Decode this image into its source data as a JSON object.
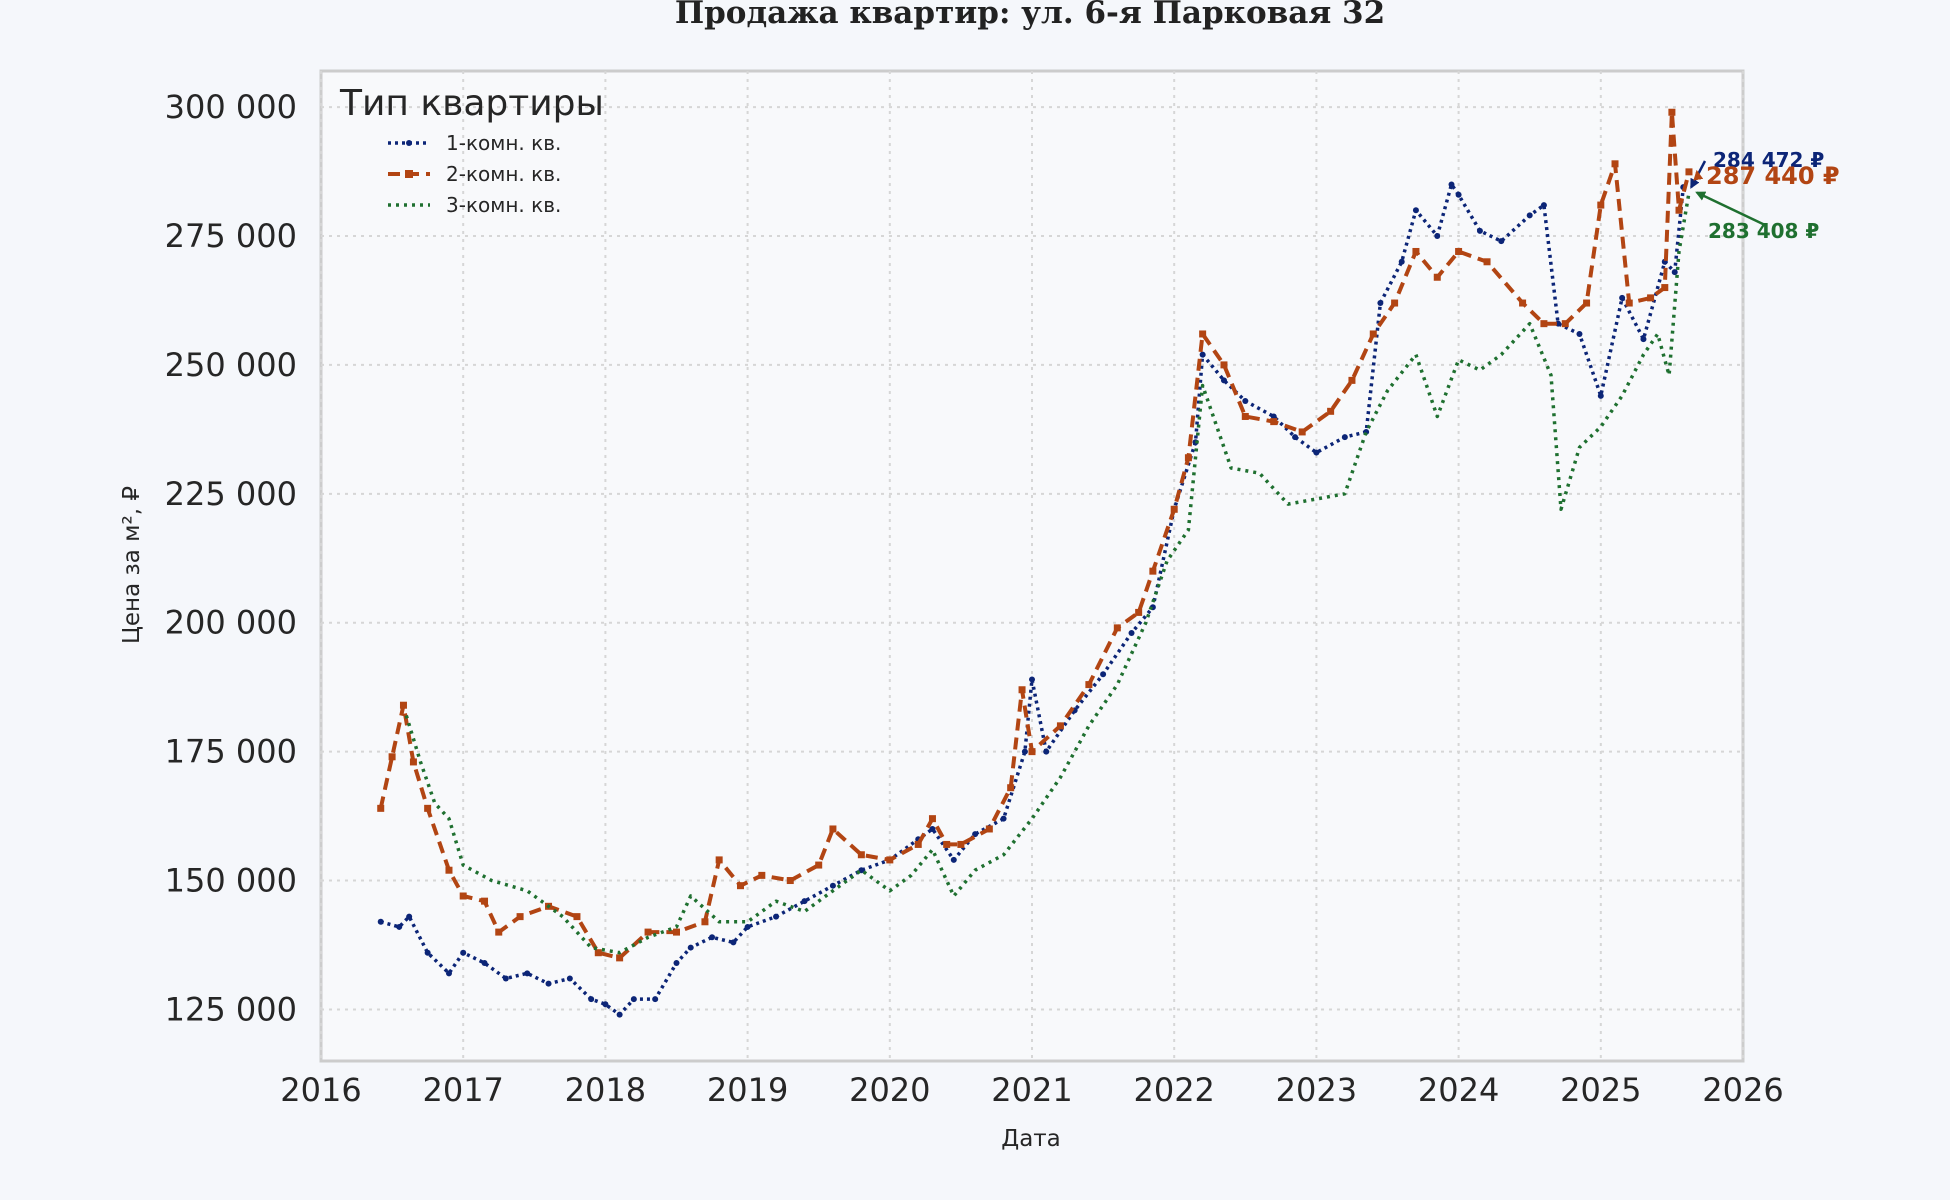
{
  "chart_data": {
    "type": "line",
    "title": "Продажа квартир: ул. 6-я Парковая 32",
    "xlabel": "Дата",
    "ylabel": "Цена за м², ₽",
    "xlim": [
      2016.0,
      2026.0
    ],
    "ylim": [
      115000,
      307000
    ],
    "x_ticks": [
      "2016",
      "2017",
      "2018",
      "2019",
      "2020",
      "2021",
      "2022",
      "2023",
      "2024",
      "2025",
      "2026"
    ],
    "y_ticks": [
      125000,
      150000,
      175000,
      200000,
      225000,
      250000,
      275000,
      300000
    ],
    "y_tick_labels": [
      "125 000",
      "150 000",
      "175 000",
      "200 000",
      "225 000",
      "250 000",
      "275 000",
      "300 000"
    ],
    "grid": true,
    "legend": {
      "title": "Тип квартиры",
      "placement": "top-left"
    },
    "series": [
      {
        "name": "1-комн. кв.",
        "color": "#0c2577",
        "style": "dotted-markers",
        "x": [
          2016.42,
          2016.55,
          2016.62,
          2016.75,
          2016.9,
          2017.0,
          2017.15,
          2017.3,
          2017.45,
          2017.6,
          2017.75,
          2017.9,
          2018.0,
          2018.1,
          2018.2,
          2018.35,
          2018.5,
          2018.6,
          2018.75,
          2018.9,
          2019.0,
          2019.2,
          2019.4,
          2019.6,
          2019.8,
          2020.0,
          2020.2,
          2020.3,
          2020.45,
          2020.6,
          2020.8,
          2020.95,
          2021.0,
          2021.1,
          2021.3,
          2021.5,
          2021.7,
          2021.85,
          2022.0,
          2022.15,
          2022.2,
          2022.35,
          2022.5,
          2022.7,
          2022.85,
          2023.0,
          2023.2,
          2023.35,
          2023.45,
          2023.6,
          2023.7,
          2023.85,
          2023.95,
          2024.0,
          2024.15,
          2024.3,
          2024.5,
          2024.6,
          2024.7,
          2024.85,
          2025.0,
          2025.15,
          2025.3,
          2025.45,
          2025.52,
          2025.58
        ],
        "values": [
          142000,
          141000,
          143000,
          136000,
          132000,
          136000,
          134000,
          131000,
          132000,
          130000,
          131000,
          127000,
          126000,
          124000,
          127000,
          127000,
          134000,
          137000,
          139000,
          138000,
          141000,
          143000,
          146000,
          149000,
          152000,
          154000,
          158000,
          160000,
          154000,
          159000,
          162000,
          175000,
          189000,
          175000,
          183000,
          190000,
          198000,
          203000,
          222000,
          235000,
          252000,
          247000,
          243000,
          240000,
          236000,
          233000,
          236000,
          237000,
          262000,
          270000,
          280000,
          275000,
          285000,
          283000,
          276000,
          274000,
          279000,
          281000,
          258000,
          256000,
          244000,
          263000,
          255000,
          270000,
          268000,
          284472
        ]
      },
      {
        "name": "2-комн. кв.",
        "color": "#b24513",
        "style": "dashed-markers",
        "x": [
          2016.42,
          2016.5,
          2016.58,
          2016.65,
          2016.75,
          2016.9,
          2017.0,
          2017.15,
          2017.25,
          2017.4,
          2017.6,
          2017.8,
          2017.95,
          2018.1,
          2018.3,
          2018.5,
          2018.7,
          2018.8,
          2018.95,
          2019.1,
          2019.3,
          2019.5,
          2019.6,
          2019.8,
          2020.0,
          2020.2,
          2020.3,
          2020.4,
          2020.5,
          2020.7,
          2020.85,
          2020.93,
          2021.0,
          2021.2,
          2021.4,
          2021.6,
          2021.75,
          2021.85,
          2022.0,
          2022.1,
          2022.2,
          2022.35,
          2022.5,
          2022.7,
          2022.9,
          2023.1,
          2023.25,
          2023.4,
          2023.55,
          2023.7,
          2023.85,
          2024.0,
          2024.2,
          2024.45,
          2024.6,
          2024.75,
          2024.9,
          2025.0,
          2025.1,
          2025.2,
          2025.35,
          2025.45,
          2025.5,
          2025.55,
          2025.62
        ],
        "values": [
          164000,
          174000,
          184000,
          173000,
          164000,
          152000,
          147000,
          146000,
          140000,
          143000,
          145000,
          143000,
          136000,
          135000,
          140000,
          140000,
          142000,
          154000,
          149000,
          151000,
          150000,
          153000,
          160000,
          155000,
          154000,
          157000,
          162000,
          157000,
          157000,
          160000,
          168000,
          187000,
          175000,
          180000,
          188000,
          199000,
          202000,
          210000,
          222000,
          232000,
          256000,
          250000,
          240000,
          239000,
          237000,
          241000,
          247000,
          256000,
          262000,
          272000,
          267000,
          272000,
          270000,
          262000,
          258000,
          258000,
          262000,
          281000,
          289000,
          262000,
          263000,
          265000,
          299000,
          280000,
          287440
        ]
      },
      {
        "name": "3-комн. кв.",
        "color": "#1f7030",
        "style": "dotted",
        "x": [
          2016.6,
          2016.7,
          2016.8,
          2016.9,
          2017.0,
          2017.2,
          2017.45,
          2017.7,
          2017.9,
          2018.1,
          2018.3,
          2018.5,
          2018.6,
          2018.8,
          2019.0,
          2019.2,
          2019.4,
          2019.6,
          2019.8,
          2020.0,
          2020.15,
          2020.3,
          2020.45,
          2020.6,
          2020.8,
          2021.0,
          2021.2,
          2021.4,
          2021.6,
          2021.8,
          2021.95,
          2022.1,
          2022.2,
          2022.4,
          2022.6,
          2022.8,
          2023.0,
          2023.2,
          2023.35,
          2023.5,
          2023.7,
          2023.85,
          2024.0,
          2024.15,
          2024.3,
          2024.5,
          2024.65,
          2024.72,
          2024.85,
          2025.0,
          2025.15,
          2025.3,
          2025.4,
          2025.48,
          2025.55,
          2025.62
        ],
        "values": [
          182000,
          173000,
          165000,
          162000,
          153000,
          150000,
          148000,
          143000,
          137000,
          136000,
          139000,
          141000,
          147000,
          142000,
          142000,
          146000,
          144000,
          148000,
          152000,
          148000,
          151000,
          156000,
          147000,
          152000,
          155000,
          162000,
          170000,
          180000,
          188000,
          200000,
          212000,
          218000,
          246000,
          230000,
          229000,
          223000,
          224000,
          225000,
          237000,
          245000,
          252000,
          240000,
          251000,
          249000,
          252000,
          258000,
          248000,
          222000,
          234000,
          238000,
          244000,
          252000,
          256000,
          248000,
          272000,
          283408
        ]
      }
    ],
    "annotations": [
      {
        "text": "284 472 ₽",
        "series": 0
      },
      {
        "text": "287 440 ₽",
        "series": 1
      },
      {
        "text": "283 408 ₽",
        "series": 2
      }
    ]
  }
}
